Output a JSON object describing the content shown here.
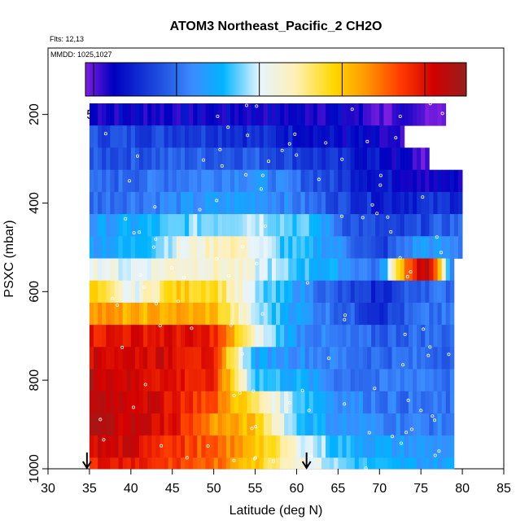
{
  "chart_data": {
    "type": "heatmap",
    "title": "ATOM3 Northeast_Pacific_2 CH2O",
    "flights_note": "Flts: 12,13",
    "dates_note": "MMDD: 1025,1027",
    "xlabel": "Latitude (deg N)",
    "ylabel": "PSXC (mbar)",
    "xlim": [
      30,
      85
    ],
    "ylim": [
      1000,
      50
    ],
    "x_ticks": [
      "30",
      "35",
      "40",
      "45",
      "50",
      "55",
      "60",
      "65",
      "70",
      "75",
      "80",
      "85"
    ],
    "y_ticks": [
      "200",
      "400",
      "600",
      "800",
      "1000"
    ],
    "colorbar": {
      "range": [
        45,
        275
      ],
      "ticks": [
        "50",
        "100",
        "150",
        "200",
        "250"
      ],
      "stops": [
        {
          "v": 45,
          "c": "#7e1ee0"
        },
        {
          "v": 62,
          "c": "#0000c0"
        },
        {
          "v": 90,
          "c": "#1f4fe0"
        },
        {
          "v": 110,
          "c": "#3c8cff"
        },
        {
          "v": 128,
          "c": "#00b4ff"
        },
        {
          "v": 150,
          "c": "#e6f4ff"
        },
        {
          "v": 172,
          "c": "#fff0b4"
        },
        {
          "v": 195,
          "c": "#ffd700"
        },
        {
          "v": 215,
          "c": "#ff9600"
        },
        {
          "v": 235,
          "c": "#ff3c00"
        },
        {
          "v": 255,
          "c": "#d20000"
        },
        {
          "v": 275,
          "c": "#961e1e"
        }
      ]
    },
    "arrows_lat": [
      34.7,
      61.2
    ],
    "rows": [
      {
        "p": 200,
        "lat": [
          35,
          65,
          68,
          71,
          78
        ],
        "val": [
          62,
          62,
          55,
          50,
          50
        ]
      },
      {
        "p": 250,
        "lat": [
          35,
          50,
          60,
          65,
          68,
          71,
          73
        ],
        "val": [
          90,
          85,
          72,
          65,
          62,
          55,
          50
        ]
      },
      {
        "p": 300,
        "lat": [
          35,
          45,
          55,
          63,
          70,
          76
        ],
        "val": [
          90,
          95,
          95,
          80,
          68,
          50
        ]
      },
      {
        "p": 350,
        "lat": [
          35,
          45,
          55,
          63,
          70,
          78,
          80
        ],
        "val": [
          95,
          105,
          115,
          90,
          70,
          60,
          60
        ]
      },
      {
        "p": 400,
        "lat": [
          35,
          45,
          55,
          60,
          65,
          70,
          80
        ],
        "val": [
          100,
          110,
          120,
          105,
          90,
          75,
          80
        ]
      },
      {
        "p": 450,
        "lat": [
          35,
          42,
          48,
          55,
          62,
          66,
          72,
          80
        ],
        "val": [
          115,
          125,
          140,
          150,
          130,
          95,
          80,
          100
        ]
      },
      {
        "p": 500,
        "lat": [
          35,
          40,
          45,
          52,
          58,
          65,
          70,
          75,
          80
        ],
        "val": [
          120,
          125,
          150,
          175,
          135,
          115,
          80,
          120,
          105
        ]
      },
      {
        "p": 550,
        "lat": [
          35,
          40,
          45,
          52,
          58,
          65,
          70,
          73,
          75,
          76,
          79
        ],
        "val": [
          160,
          150,
          165,
          165,
          140,
          120,
          100,
          220,
          260,
          260,
          100
        ]
      },
      {
        "p": 600,
        "lat": [
          35,
          40,
          45,
          50,
          55,
          60,
          65,
          70,
          75,
          79
        ],
        "val": [
          200,
          150,
          195,
          195,
          140,
          120,
          90,
          75,
          100,
          100
        ]
      },
      {
        "p": 650,
        "lat": [
          35,
          40,
          45,
          50,
          55,
          60,
          65,
          70,
          75,
          79
        ],
        "val": [
          220,
          205,
          210,
          205,
          145,
          120,
          100,
          80,
          100,
          100
        ]
      },
      {
        "p": 700,
        "lat": [
          35,
          40,
          45,
          50,
          55,
          60,
          65,
          70,
          75,
          79
        ],
        "val": [
          245,
          250,
          250,
          245,
          160,
          115,
          100,
          95,
          100,
          100
        ]
      },
      {
        "p": 750,
        "lat": [
          35,
          40,
          45,
          50,
          55,
          60,
          65,
          70,
          75,
          79
        ],
        "val": [
          255,
          255,
          255,
          240,
          120,
          115,
          105,
          100,
          100,
          100
        ]
      },
      {
        "p": 800,
        "lat": [
          35,
          40,
          45,
          50,
          55,
          60,
          65,
          70,
          75,
          79
        ],
        "val": [
          265,
          255,
          250,
          240,
          135,
          125,
          105,
          100,
          110,
          100
        ]
      },
      {
        "p": 850,
        "lat": [
          35,
          40,
          45,
          50,
          55,
          60,
          65,
          70,
          75,
          79
        ],
        "val": [
          265,
          260,
          250,
          230,
          180,
          140,
          115,
          105,
          100,
          100
        ]
      },
      {
        "p": 900,
        "lat": [
          35,
          40,
          45,
          50,
          55,
          60,
          65,
          70,
          75,
          79
        ],
        "val": [
          265,
          260,
          250,
          215,
          200,
          135,
          115,
          110,
          105,
          105
        ]
      },
      {
        "p": 950,
        "lat": [
          35,
          40,
          45,
          50,
          55,
          60,
          65,
          70,
          75,
          79
        ],
        "val": [
          255,
          255,
          240,
          225,
          205,
          160,
          130,
          120,
          115,
          115
        ]
      },
      {
        "p": 1000,
        "lat": [
          35,
          40,
          45,
          50,
          55,
          60,
          65,
          70,
          75,
          79
        ],
        "val": [
          245,
          250,
          235,
          225,
          200,
          165,
          140,
          125,
          120,
          120
        ]
      }
    ]
  }
}
